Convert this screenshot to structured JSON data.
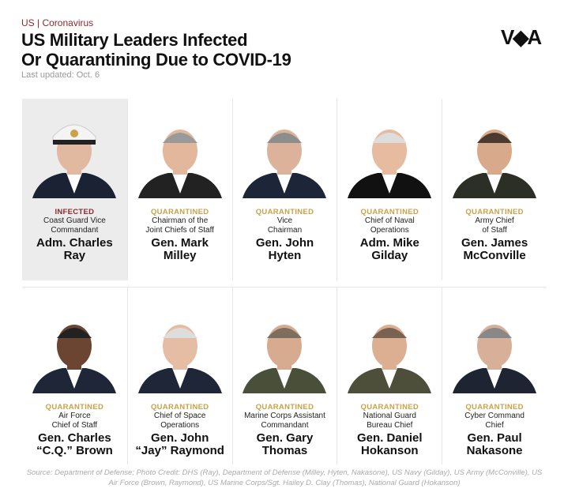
{
  "header": {
    "kicker": "US | Coronavirus",
    "title_line1": "US Military Leaders Infected",
    "title_line2": "Or Quarantining Due to COVID-19",
    "updated": "Last updated: Oct. 6",
    "logo": "VOA"
  },
  "colors": {
    "infected": "#8a2a2f",
    "quarantined": "#c9a24a"
  },
  "leaders": [
    {
      "status": "INFECTED",
      "role1": "Coast Guard Vice",
      "role2": "Commandant",
      "name1": "Adm. Charles",
      "name2": "Ray"
    },
    {
      "status": "QUARANTINED",
      "role1": "Chairman of the",
      "role2": "Joint Chiefs of Staff",
      "name1": "Gen. Mark",
      "name2": "Milley"
    },
    {
      "status": "QUARANTINED",
      "role1": "Vice",
      "role2": "Chairman",
      "name1": "Gen. John",
      "name2": "Hyten"
    },
    {
      "status": "QUARANTINED",
      "role1": "Chief of Naval",
      "role2": "Operations",
      "name1": "Adm. Mike",
      "name2": "Gilday"
    },
    {
      "status": "QUARANTINED",
      "role1": "Army Chief",
      "role2": "of Staff",
      "name1": "Gen. James",
      "name2": "McConville"
    },
    {
      "status": "QUARANTINED",
      "role1": "Air Force",
      "role2": "Chief of Staff",
      "name1": "Gen. Charles",
      "name2": "“C.Q.” Brown"
    },
    {
      "status": "QUARANTINED",
      "role1": "Chief of Space",
      "role2": "Operations",
      "name1": "Gen. John",
      "name2": "“Jay” Raymond"
    },
    {
      "status": "QUARANTINED",
      "role1": "Marine Corps Assistant",
      "role2": "Commandant",
      "name1": "Gen. Gary",
      "name2": "Thomas"
    },
    {
      "status": "QUARANTINED",
      "role1": "National Guard",
      "role2": "Bureau Chief",
      "name1": "Gen. Daniel",
      "name2": "Hokanson"
    },
    {
      "status": "QUARANTINED",
      "role1": "Cyber Command",
      "role2": "Chief",
      "name1": "Gen. Paul",
      "name2": "Nakasone"
    }
  ],
  "source": "Source: Department of Defense; Photo Credit: DHS (Ray), Department of Defense (Milley, Hyten, Nakasone), US Navy (Gilday), US Army (McConville), US Air Force (Brown, Raymond), US Marine Corps/Sgt. Hailey D. Clay (Thomas), National Guard (Hokanson)"
}
